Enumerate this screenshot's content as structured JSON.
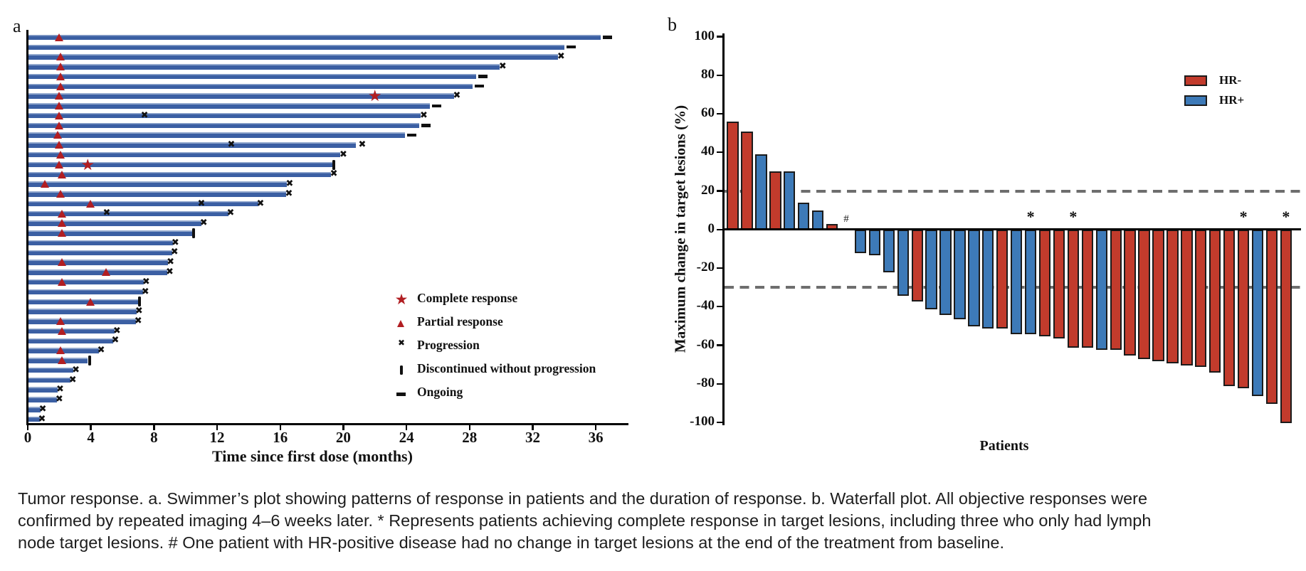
{
  "page": {
    "background": "#ffffff"
  },
  "panel_a": {
    "label": "a",
    "bar_color": "#3b5fa3",
    "bar_highlight": "#91a7cd",
    "marker_color": "#b11e22",
    "legend": [
      {
        "symbol": "star",
        "label": "Complete response"
      },
      {
        "symbol": "triangle",
        "label": "Partial response"
      },
      {
        "symbol": "x",
        "label": "Progression"
      },
      {
        "symbol": "bar",
        "label": "Discontinued without progression"
      },
      {
        "symbol": "dash",
        "label": "Ongoing"
      }
    ]
  },
  "panel_b": {
    "label": "b",
    "colors": {
      "HR-": "#c23b2c",
      "HR+": "#3d7ab8"
    },
    "legend": [
      {
        "label": "HR-",
        "color": "#c23b2c"
      },
      {
        "label": "HR+",
        "color": "#3d7ab8"
      }
    ],
    "zero_annotation": "#",
    "cr_annotation": "*"
  },
  "caption": {
    "line1": "Tumor response. a. Swimmer’s plot showing patterns of response in patients and the duration of response. b. Waterfall plot. All objective responses were",
    "line2": "confirmed by repeated imaging 4–6 weeks later. * Represents patients achieving complete response in target lesions, including three who only had lymph",
    "line3": "node target lesions. # One patient with HR-positive disease had no change in target lesions at the end of the treatment from baseline."
  },
  "chart_data": [
    {
      "type": "bar",
      "name": "swimmers_plot",
      "xlabel": "Time since first dose (months)",
      "xlim": [
        0,
        38
      ],
      "x_ticks": [
        0,
        4,
        8,
        12,
        16,
        20,
        24,
        28,
        32,
        36
      ],
      "legend_position": "center-right",
      "patients": [
        {
          "duration": 36.3,
          "pr": 2.0,
          "ongoing": true
        },
        {
          "duration": 34.0,
          "ongoing": true
        },
        {
          "duration": 33.6,
          "pr": 2.1,
          "prog": [
            33.8
          ]
        },
        {
          "duration": 29.9,
          "pr": 2.1,
          "prog": [
            30.1
          ]
        },
        {
          "duration": 28.4,
          "pr": 2.1,
          "ongoing": true
        },
        {
          "duration": 28.2,
          "pr": 2.1,
          "ongoing": true
        },
        {
          "duration": 27.0,
          "pr": 2.0,
          "cr": 22.0,
          "prog": [
            27.2
          ]
        },
        {
          "duration": 25.5,
          "pr": 2.0,
          "ongoing": true
        },
        {
          "duration": 24.9,
          "pr": 2.0,
          "prog": [
            7.4,
            25.1
          ]
        },
        {
          "duration": 24.8,
          "pr": 2.0,
          "ongoing": true
        },
        {
          "duration": 23.9,
          "pr": 1.9,
          "ongoing": true
        },
        {
          "duration": 20.8,
          "pr": 2.0,
          "prog": [
            12.9,
            21.2
          ]
        },
        {
          "duration": 19.8,
          "pr": 2.1,
          "prog": [
            20.0
          ]
        },
        {
          "duration": 19.3,
          "pr": 2.0,
          "cr": 3.8,
          "disc": 19.4
        },
        {
          "duration": 19.2,
          "pr": 2.2,
          "prog": [
            19.4
          ]
        },
        {
          "duration": 16.4,
          "pr": 1.1,
          "prog": [
            16.6
          ]
        },
        {
          "duration": 16.35,
          "pr": 2.1,
          "prog": [
            16.55
          ]
        },
        {
          "duration": 14.6,
          "pr": 4.0,
          "prog": [
            11.0,
            14.75
          ]
        },
        {
          "duration": 12.7,
          "pr": 2.2,
          "prog": [
            5.0,
            12.85
          ]
        },
        {
          "duration": 11.0,
          "pr": 2.2,
          "prog": [
            11.15
          ]
        },
        {
          "duration": 10.4,
          "pr": 2.2,
          "disc": 10.5
        },
        {
          "duration": 9.2,
          "prog": [
            9.35
          ]
        },
        {
          "duration": 9.15,
          "prog": [
            9.3
          ]
        },
        {
          "duration": 8.9,
          "pr": 2.2,
          "prog": [
            9.05
          ]
        },
        {
          "duration": 8.85,
          "pr": 5.0,
          "prog": [
            9.0
          ]
        },
        {
          "duration": 7.35,
          "pr": 2.2,
          "prog": [
            7.5
          ]
        },
        {
          "duration": 7.3,
          "prog": [
            7.45
          ]
        },
        {
          "duration": 7.0,
          "pr": 4.0,
          "disc": 7.1
        },
        {
          "duration": 6.9,
          "prog": [
            7.05
          ]
        },
        {
          "duration": 6.85,
          "pr": 2.1,
          "prog": [
            7.0
          ]
        },
        {
          "duration": 5.5,
          "pr": 2.2,
          "prog": [
            5.65
          ]
        },
        {
          "duration": 5.4,
          "prog": [
            5.55
          ]
        },
        {
          "duration": 4.5,
          "pr": 2.1,
          "prog": [
            4.65
          ]
        },
        {
          "duration": 3.8,
          "pr": 2.2,
          "disc": 3.9
        },
        {
          "duration": 2.9,
          "prog": [
            3.05
          ]
        },
        {
          "duration": 2.7,
          "prog": [
            2.85
          ]
        },
        {
          "duration": 1.9,
          "prog": [
            2.05
          ]
        },
        {
          "duration": 1.85,
          "prog": [
            2.0
          ]
        },
        {
          "duration": 0.8,
          "prog": [
            0.95
          ]
        },
        {
          "duration": 0.75,
          "prog": [
            0.9
          ]
        }
      ]
    },
    {
      "type": "bar",
      "name": "waterfall_plot",
      "ylabel": "Maximum change in target lesions (%)",
      "xlabel": "Patients",
      "ylim": [
        -100,
        100
      ],
      "y_ticks": [
        100,
        80,
        60,
        40,
        20,
        0,
        -20,
        -40,
        -60,
        -80,
        -100
      ],
      "reference_lines": [
        20,
        -30
      ],
      "legend_position": "top-right",
      "patients": [
        {
          "change": 56,
          "group": "HR-"
        },
        {
          "change": 51,
          "group": "HR-"
        },
        {
          "change": 39,
          "group": "HR+"
        },
        {
          "change": 30,
          "group": "HR-"
        },
        {
          "change": 30,
          "group": "HR+"
        },
        {
          "change": 14,
          "group": "HR+"
        },
        {
          "change": 10,
          "group": "HR+"
        },
        {
          "change": 3,
          "group": "HR-"
        },
        {
          "change": 0,
          "group": "HR+",
          "annotation": "#"
        },
        {
          "change": -12,
          "group": "HR+"
        },
        {
          "change": -13,
          "group": "HR+"
        },
        {
          "change": -22,
          "group": "HR+"
        },
        {
          "change": -34,
          "group": "HR+"
        },
        {
          "change": -37,
          "group": "HR-"
        },
        {
          "change": -41,
          "group": "HR+"
        },
        {
          "change": -44,
          "group": "HR+"
        },
        {
          "change": -46,
          "group": "HR+"
        },
        {
          "change": -50,
          "group": "HR+"
        },
        {
          "change": -51,
          "group": "HR+"
        },
        {
          "change": -51,
          "group": "HR-"
        },
        {
          "change": -54,
          "group": "HR+"
        },
        {
          "change": -54,
          "group": "HR+",
          "annotation": "*"
        },
        {
          "change": -55,
          "group": "HR-"
        },
        {
          "change": -56,
          "group": "HR-"
        },
        {
          "change": -61,
          "group": "HR-",
          "annotation": "*"
        },
        {
          "change": -61,
          "group": "HR-"
        },
        {
          "change": -62,
          "group": "HR+"
        },
        {
          "change": -62,
          "group": "HR-"
        },
        {
          "change": -65,
          "group": "HR-"
        },
        {
          "change": -67,
          "group": "HR-"
        },
        {
          "change": -68,
          "group": "HR-"
        },
        {
          "change": -69,
          "group": "HR-"
        },
        {
          "change": -70,
          "group": "HR-"
        },
        {
          "change": -71,
          "group": "HR-"
        },
        {
          "change": -74,
          "group": "HR-"
        },
        {
          "change": -81,
          "group": "HR-"
        },
        {
          "change": -82,
          "group": "HR-",
          "annotation": "*"
        },
        {
          "change": -86,
          "group": "HR+"
        },
        {
          "change": -90,
          "group": "HR-"
        },
        {
          "change": -100,
          "group": "HR-",
          "annotation": "*"
        }
      ]
    }
  ]
}
